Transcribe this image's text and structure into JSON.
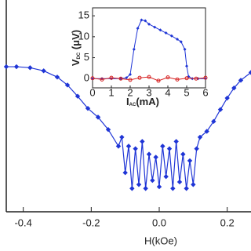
{
  "chart_data": [
    {
      "type": "line",
      "x_label": "H(kOe)",
      "log_y": true,
      "xlim": [
        -0.45,
        0.27
      ],
      "ylim": [
        0.53,
        38.6
      ],
      "xticks": [
        -0.4,
        -0.2,
        {
          "value": 0,
          "label": "0.0"
        },
        0.2
      ],
      "series": [
        {
          "color": "#1f35d6",
          "x": [
            -0.45,
            -0.42,
            -0.38,
            -0.34,
            -0.3,
            -0.27,
            -0.24,
            -0.21,
            -0.18,
            -0.15,
            -0.12,
            -0.11,
            -0.1,
            -0.09,
            -0.08,
            -0.07,
            -0.06,
            -0.05,
            -0.04,
            -0.03,
            -0.02,
            -0.01,
            0.0,
            0.01,
            0.02,
            0.03,
            0.04,
            0.05,
            0.06,
            0.07,
            0.08,
            0.09,
            0.1,
            0.11,
            0.12,
            0.14,
            0.16,
            0.18,
            0.2,
            0.22,
            0.24,
            0.27
          ],
          "values": [
            10,
            10,
            9.8,
            9.2,
            8.1,
            6.9,
            5.5,
            4.3,
            3.6,
            2.8,
            2.0,
            2.4,
            1.17,
            2.0,
            0.85,
            1.9,
            0.92,
            2.2,
            0.85,
            1.7,
            1.0,
            1.6,
            0.88,
            2.0,
            1.08,
            1.9,
            0.85,
            2.2,
            0.97,
            1.7,
            0.85,
            1.49,
            0.92,
            1.9,
            2.4,
            2.7,
            3.3,
            4.2,
            5.3,
            6.5,
            7.6,
            8.9
          ]
        }
      ]
    },
    {
      "type": "line",
      "x_label": "I",
      "x_label_sub": "AC",
      "x_label_unit": "(mA)",
      "y_label": "V",
      "y_label_sub": "DC",
      "y_label_unit": " (μV)",
      "xlim": [
        0,
        6
      ],
      "ylim": [
        -2.2,
        16.9
      ],
      "xticks": [
        0,
        1,
        2,
        3,
        4,
        5,
        6
      ],
      "yticks": [
        0,
        5,
        10,
        15
      ],
      "series": [
        {
          "color": "#1f35d6",
          "x": [
            0,
            0.5,
            1,
            1.5,
            1.8,
            2.0,
            2.2,
            2.4,
            2.6,
            2.8,
            3.0,
            3.3,
            3.6,
            3.9,
            4.2,
            4.5,
            4.7,
            4.9,
            5.0,
            5.1,
            5.3,
            5.6,
            6
          ],
          "values": [
            0,
            0,
            0,
            0,
            0.2,
            1,
            7,
            12,
            14,
            13.8,
            13,
            12.3,
            11.6,
            10.9,
            10.2,
            9.4,
            8.8,
            7,
            3,
            0.5,
            0,
            0,
            0
          ]
        },
        {
          "color": "#d62020",
          "x": [
            0,
            0.5,
            1,
            1.5,
            2,
            2.5,
            3,
            3.5,
            4,
            4.5,
            5,
            5.5,
            6
          ],
          "values": [
            0.1,
            -0.2,
            0.2,
            0,
            -0.3,
            0.2,
            0.4,
            -0.5,
            0.3,
            -0.2,
            0.1,
            0,
            0.2
          ]
        }
      ]
    }
  ]
}
